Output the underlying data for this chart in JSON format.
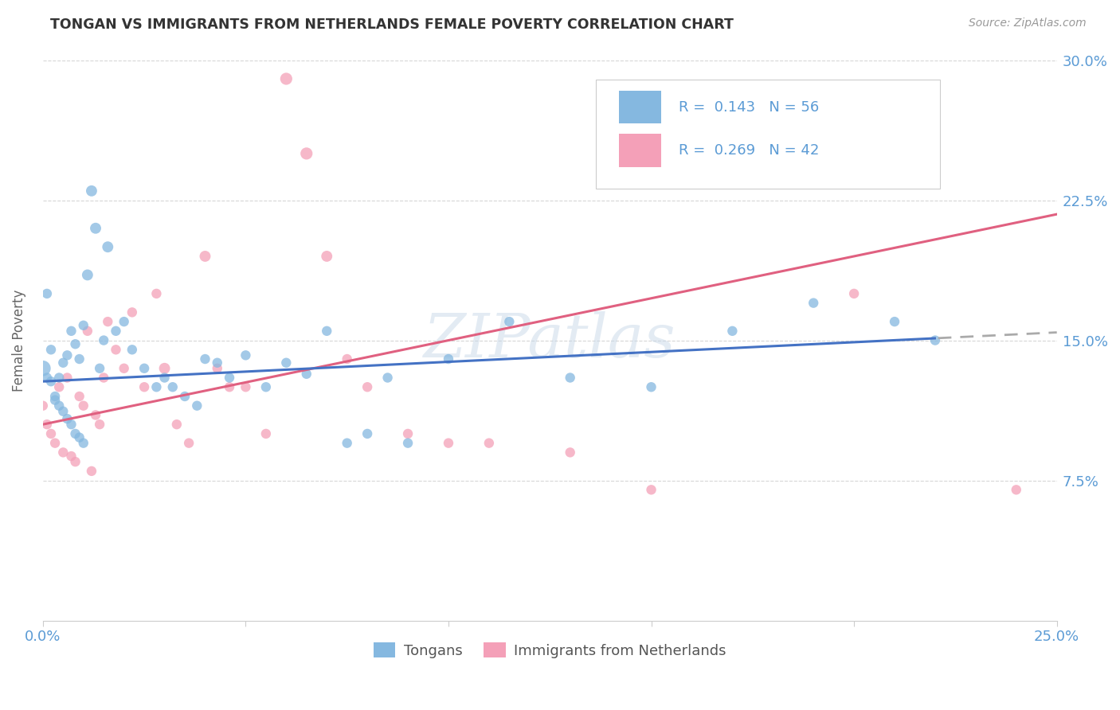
{
  "title": "TONGAN VS IMMIGRANTS FROM NETHERLANDS FEMALE POVERTY CORRELATION CHART",
  "source": "Source: ZipAtlas.com",
  "ylabel": "Female Poverty",
  "xlim": [
    0.0,
    0.25
  ],
  "ylim": [
    0.0,
    0.3
  ],
  "xtick_vals": [
    0.0,
    0.05,
    0.1,
    0.15,
    0.2,
    0.25
  ],
  "xtick_labels": [
    "0.0%",
    "",
    "",
    "",
    "",
    "25.0%"
  ],
  "ytick_vals": [
    0.075,
    0.15,
    0.225,
    0.3
  ],
  "ytick_labels": [
    "7.5%",
    "15.0%",
    "22.5%",
    "30.0%"
  ],
  "legend1_label": "R =  0.143   N = 56",
  "legend2_label": "R =  0.269   N = 42",
  "legend_bottom": "Tongans",
  "legend_bottom2": "Immigrants from Netherlands",
  "blue_color": "#85b8e0",
  "pink_color": "#f4a0b8",
  "line_blue": "#4472c4",
  "line_pink": "#e06080",
  "axis_color": "#5b9bd5",
  "watermark": "ZIPatlas",
  "tongans_x": [
    0.0,
    0.001,
    0.001,
    0.002,
    0.002,
    0.003,
    0.003,
    0.004,
    0.004,
    0.005,
    0.005,
    0.006,
    0.006,
    0.007,
    0.007,
    0.008,
    0.008,
    0.009,
    0.009,
    0.01,
    0.01,
    0.011,
    0.012,
    0.013,
    0.014,
    0.015,
    0.016,
    0.018,
    0.02,
    0.022,
    0.025,
    0.028,
    0.03,
    0.032,
    0.035,
    0.038,
    0.04,
    0.043,
    0.046,
    0.05,
    0.055,
    0.06,
    0.065,
    0.07,
    0.075,
    0.08,
    0.085,
    0.09,
    0.1,
    0.115,
    0.13,
    0.15,
    0.17,
    0.19,
    0.21,
    0.22
  ],
  "tongans_y": [
    0.135,
    0.13,
    0.175,
    0.128,
    0.145,
    0.12,
    0.118,
    0.115,
    0.13,
    0.112,
    0.138,
    0.108,
    0.142,
    0.155,
    0.105,
    0.1,
    0.148,
    0.098,
    0.14,
    0.095,
    0.158,
    0.185,
    0.23,
    0.21,
    0.135,
    0.15,
    0.2,
    0.155,
    0.16,
    0.145,
    0.135,
    0.125,
    0.13,
    0.125,
    0.12,
    0.115,
    0.14,
    0.138,
    0.13,
    0.142,
    0.125,
    0.138,
    0.132,
    0.155,
    0.095,
    0.1,
    0.13,
    0.095,
    0.14,
    0.16,
    0.13,
    0.125,
    0.155,
    0.17,
    0.16,
    0.15
  ],
  "tongans_size": [
    200,
    80,
    80,
    80,
    80,
    80,
    80,
    80,
    80,
    80,
    80,
    80,
    80,
    80,
    80,
    80,
    80,
    80,
    80,
    80,
    80,
    100,
    100,
    100,
    80,
    80,
    100,
    80,
    80,
    80,
    80,
    80,
    80,
    80,
    80,
    80,
    80,
    80,
    80,
    80,
    80,
    80,
    80,
    80,
    80,
    80,
    80,
    80,
    80,
    80,
    80,
    80,
    80,
    80,
    80,
    80
  ],
  "netherlands_x": [
    0.0,
    0.001,
    0.002,
    0.003,
    0.004,
    0.005,
    0.006,
    0.007,
    0.008,
    0.009,
    0.01,
    0.011,
    0.012,
    0.013,
    0.014,
    0.015,
    0.016,
    0.018,
    0.02,
    0.022,
    0.025,
    0.028,
    0.03,
    0.033,
    0.036,
    0.04,
    0.043,
    0.046,
    0.05,
    0.055,
    0.06,
    0.065,
    0.07,
    0.075,
    0.08,
    0.09,
    0.1,
    0.11,
    0.13,
    0.15,
    0.2,
    0.24
  ],
  "netherlands_y": [
    0.115,
    0.105,
    0.1,
    0.095,
    0.125,
    0.09,
    0.13,
    0.088,
    0.085,
    0.12,
    0.115,
    0.155,
    0.08,
    0.11,
    0.105,
    0.13,
    0.16,
    0.145,
    0.135,
    0.165,
    0.125,
    0.175,
    0.135,
    0.105,
    0.095,
    0.195,
    0.135,
    0.125,
    0.125,
    0.1,
    0.29,
    0.25,
    0.195,
    0.14,
    0.125,
    0.1,
    0.095,
    0.095,
    0.09,
    0.07,
    0.175,
    0.07
  ],
  "netherlands_size": [
    80,
    80,
    80,
    80,
    80,
    80,
    80,
    80,
    80,
    80,
    80,
    80,
    80,
    80,
    80,
    80,
    80,
    80,
    80,
    80,
    80,
    80,
    100,
    80,
    80,
    100,
    80,
    80,
    80,
    80,
    120,
    120,
    100,
    80,
    80,
    80,
    80,
    80,
    80,
    80,
    80,
    80
  ],
  "blue_line_intercept": 0.128,
  "blue_line_slope": 0.105,
  "pink_line_intercept": 0.105,
  "pink_line_slope": 0.45
}
